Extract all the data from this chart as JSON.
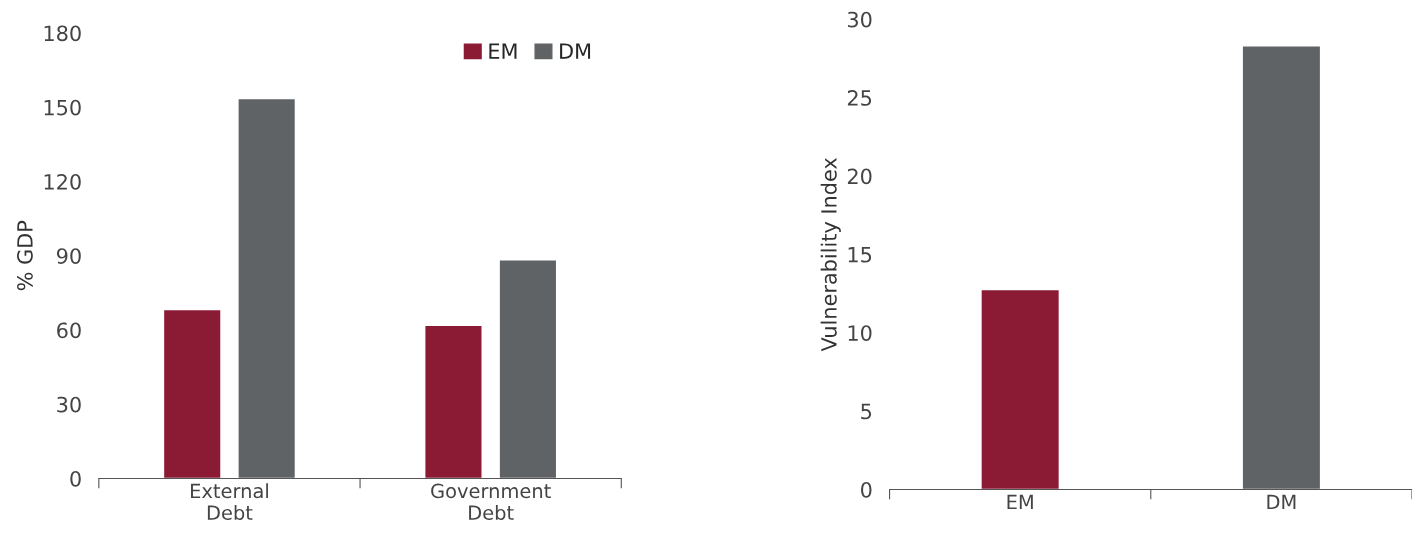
{
  "chart_data": [
    {
      "type": "bar",
      "ylabel": "% GDP",
      "categories": [
        "External\nDebt",
        "Government\nDebt"
      ],
      "series": [
        {
          "name": "EM",
          "color": "#8b1a34",
          "values": [
            68.3,
            61.9
          ]
        },
        {
          "name": "DM",
          "color": "#5f6366",
          "values": [
            153.5,
            88.4
          ]
        }
      ],
      "ylim": [
        0,
        180
      ],
      "yticks": [
        0,
        30,
        60,
        90,
        120,
        150,
        180
      ],
      "grid": false,
      "legend": "top right"
    },
    {
      "type": "bar",
      "ylabel": "Vulnerability Index",
      "categories": [
        "EM",
        "DM"
      ],
      "values": [
        12.76,
        28.3
      ],
      "colors": [
        "#8b1a34",
        "#5f6366"
      ],
      "ylim": [
        0,
        30
      ],
      "yticks": [
        0,
        5,
        10,
        15,
        20,
        25,
        30
      ],
      "grid": false
    }
  ]
}
